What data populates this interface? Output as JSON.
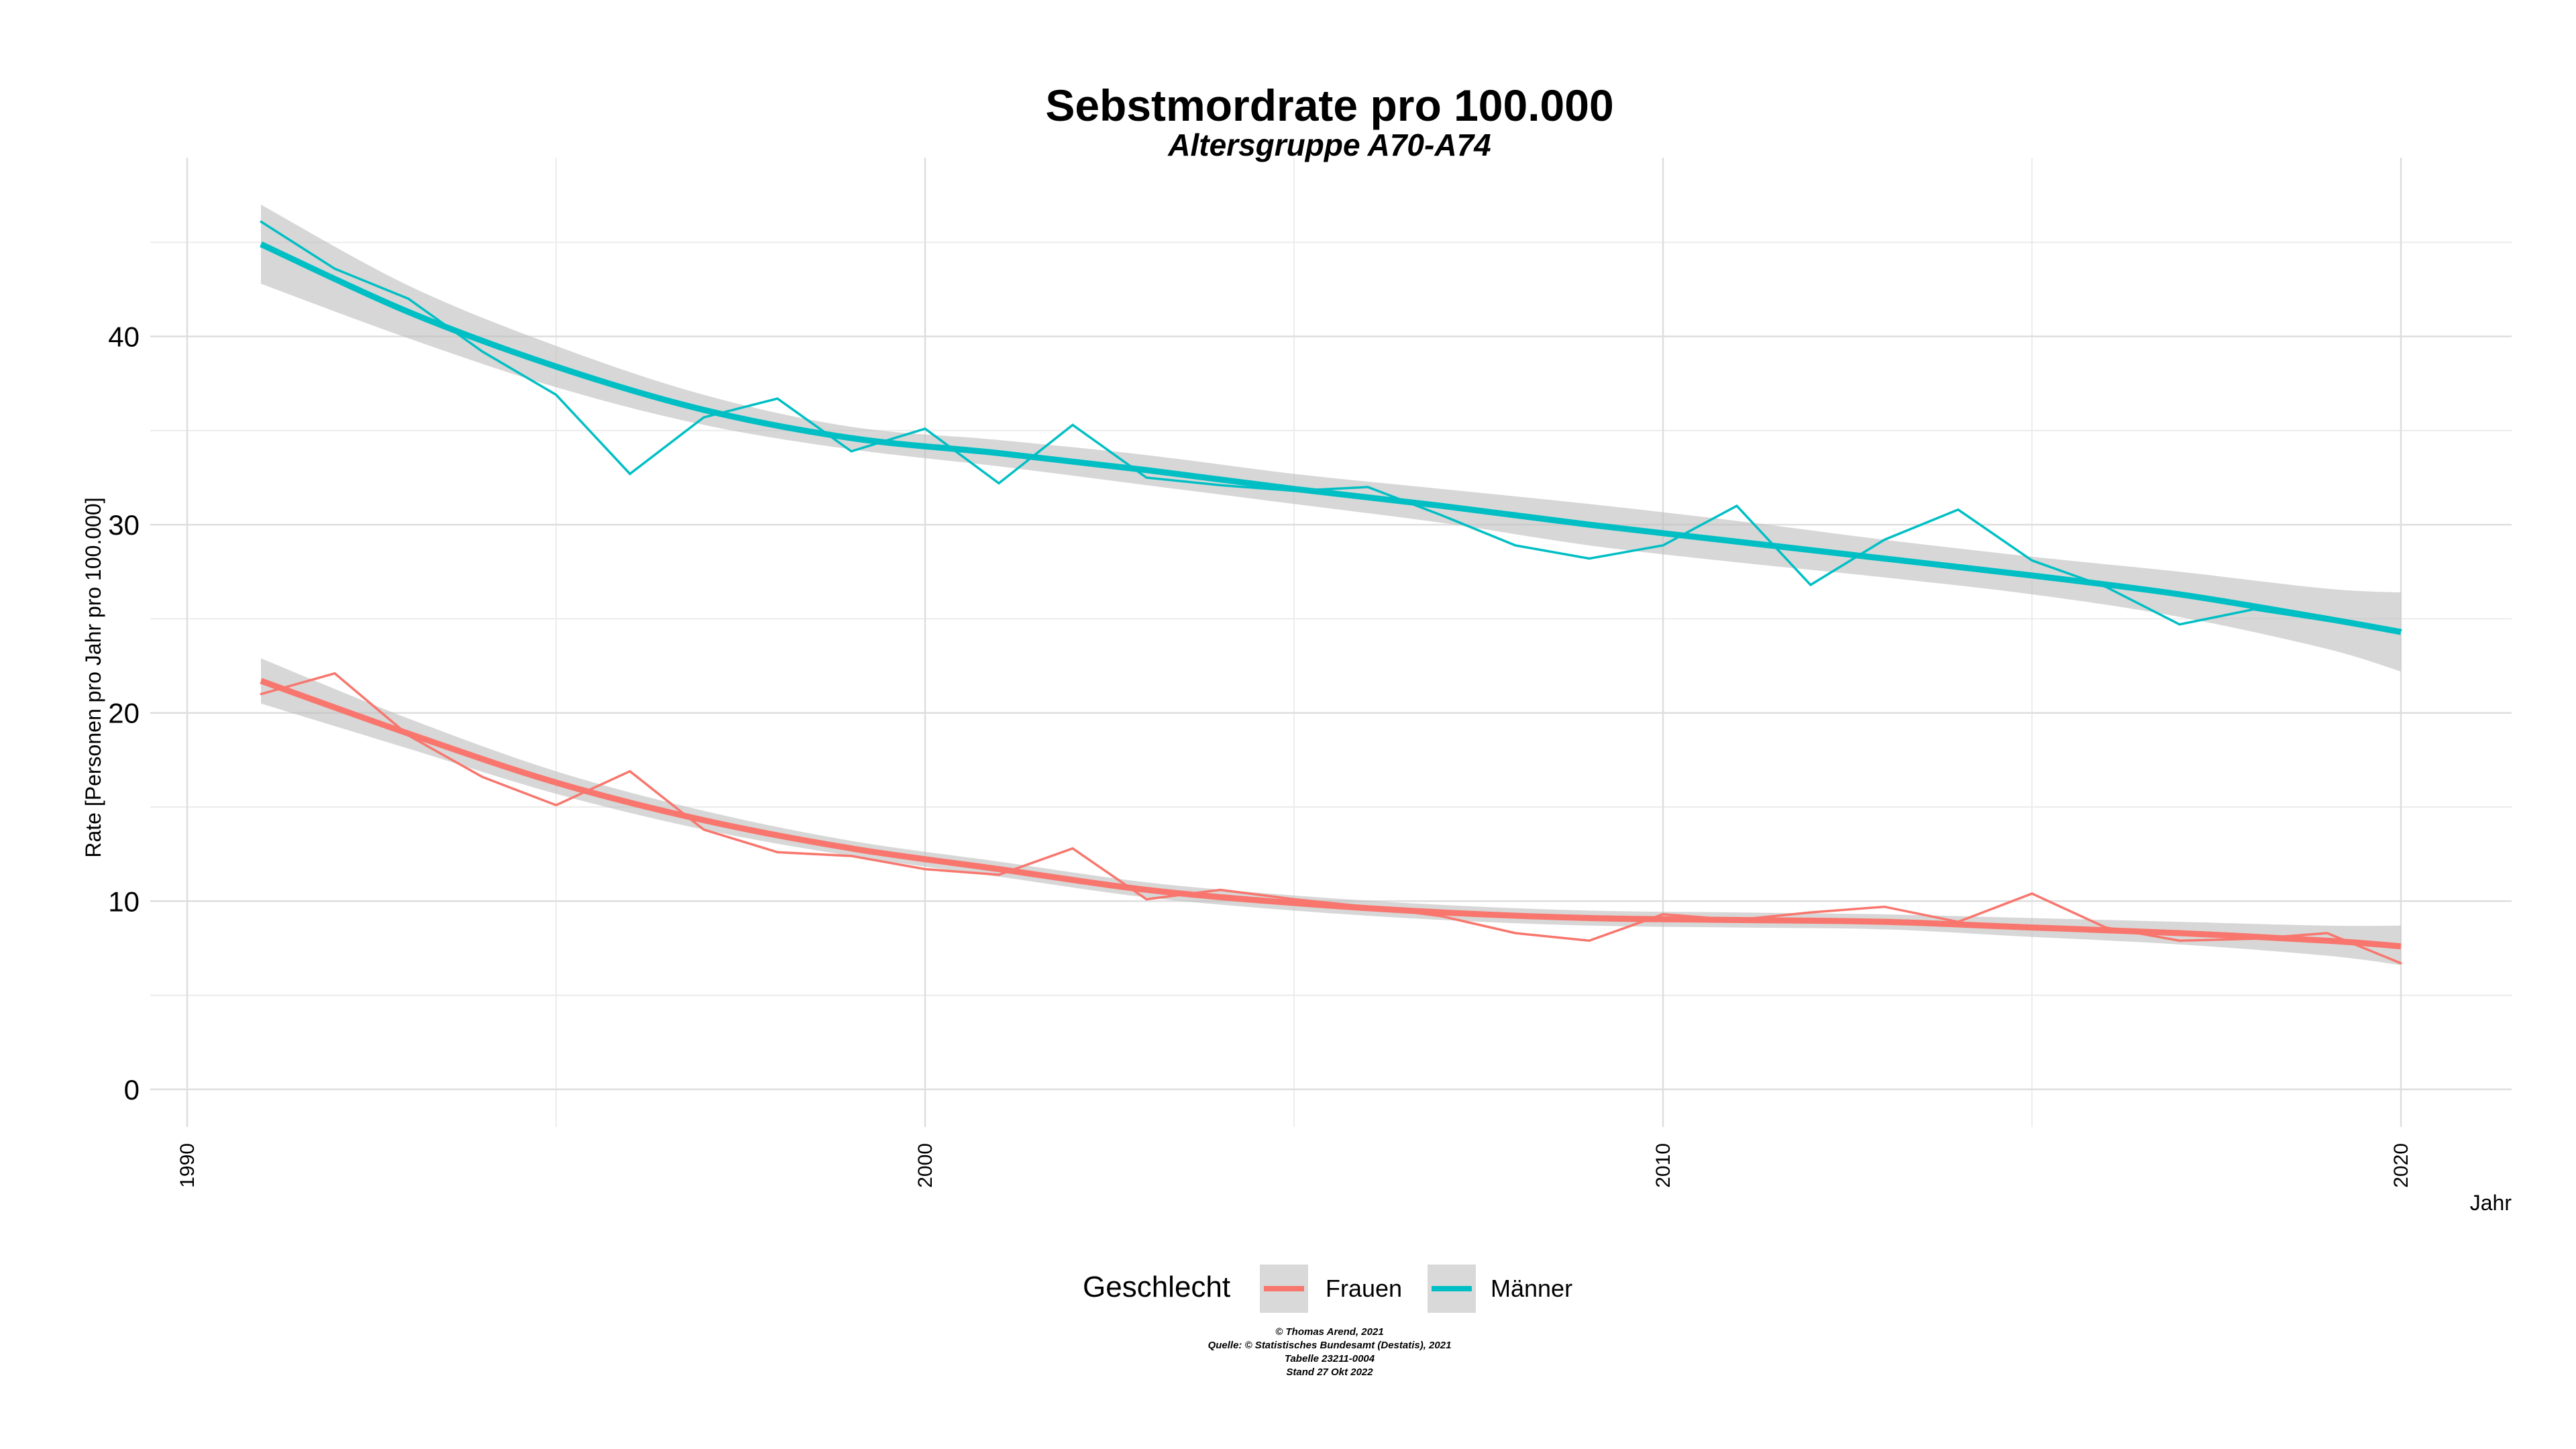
{
  "chart_data": {
    "type": "line",
    "title": "Sebstmordrate pro 100.000",
    "subtitle": "Altersgruppe A70-A74",
    "xlabel": "Jahr",
    "ylabel": "Rate [Personen pro Jahr pro 100.000]",
    "xlim": [
      1989.5,
      2021.5
    ],
    "ylim": [
      -2,
      49.5
    ],
    "x_ticks": [
      1990,
      2000,
      2010,
      2020
    ],
    "y_ticks": [
      0,
      10,
      20,
      30,
      40
    ],
    "grid": true,
    "legend": {
      "title": "Geschlecht",
      "position": "bottom"
    },
    "series": [
      {
        "name": "Frauen",
        "color": "#F8766D",
        "x": [
          1991,
          1992,
          1993,
          1994,
          1995,
          1996,
          1997,
          1998,
          1999,
          2000,
          2001,
          2002,
          2003,
          2004,
          2005,
          2006,
          2007,
          2008,
          2009,
          2010,
          2011,
          2012,
          2013,
          2014,
          2015,
          2016,
          2017,
          2018,
          2019,
          2020
        ],
        "values": [
          21.0,
          22.1,
          18.8,
          16.6,
          15.1,
          16.9,
          13.8,
          12.6,
          12.4,
          11.7,
          11.4,
          12.8,
          10.1,
          10.6,
          10.1,
          9.7,
          9.2,
          8.3,
          7.9,
          9.3,
          9.0,
          9.4,
          9.7,
          8.9,
          10.4,
          8.6,
          7.9,
          8.0,
          8.3,
          6.7
        ],
        "smooth": {
          "x": [
            1991,
            1993,
            1995,
            1997,
            1999,
            2001,
            2003,
            2005,
            2007,
            2009,
            2011,
            2013,
            2015,
            2017,
            2019,
            2020
          ],
          "y": [
            21.7,
            18.9,
            16.3,
            14.3,
            12.8,
            11.7,
            10.6,
            9.9,
            9.4,
            9.1,
            9.0,
            8.9,
            8.6,
            8.3,
            7.9,
            7.6
          ],
          "upper": [
            22.9,
            19.7,
            16.9,
            14.8,
            13.2,
            12.1,
            11.0,
            10.3,
            9.8,
            9.5,
            9.4,
            9.3,
            9.1,
            8.9,
            8.7,
            8.7
          ],
          "lower": [
            20.5,
            18.1,
            15.7,
            13.8,
            12.4,
            11.3,
            10.2,
            9.5,
            9.0,
            8.7,
            8.6,
            8.5,
            8.1,
            7.7,
            7.1,
            6.6
          ]
        }
      },
      {
        "name": "Männer",
        "color": "#00BFC4",
        "x": [
          1991,
          1992,
          1993,
          1994,
          1995,
          1996,
          1997,
          1998,
          1999,
          2000,
          2001,
          2002,
          2003,
          2004,
          2005,
          2006,
          2007,
          2008,
          2009,
          2010,
          2011,
          2012,
          2013,
          2014,
          2015,
          2016,
          2017,
          2018,
          2019,
          2020
        ],
        "values": [
          46.1,
          43.6,
          42.0,
          39.2,
          36.9,
          32.7,
          35.7,
          36.7,
          33.9,
          35.1,
          32.2,
          35.3,
          32.5,
          32.1,
          31.8,
          32.0,
          30.5,
          28.9,
          28.2,
          28.9,
          31.0,
          26.8,
          29.2,
          30.8,
          28.1,
          26.7,
          24.7,
          25.5,
          24.9,
          24.4
        ],
        "smooth": {
          "x": [
            1991,
            1993,
            1995,
            1997,
            1999,
            2001,
            2003,
            2005,
            2007,
            2009,
            2011,
            2013,
            2015,
            2017,
            2019,
            2020
          ],
          "y": [
            44.9,
            41.3,
            38.4,
            36.1,
            34.6,
            33.8,
            32.9,
            31.9,
            31.0,
            30.0,
            29.1,
            28.2,
            27.3,
            26.3,
            25.0,
            24.3
          ],
          "upper": [
            47.0,
            42.7,
            39.5,
            36.9,
            35.2,
            34.5,
            33.7,
            32.7,
            31.9,
            31.1,
            30.2,
            29.2,
            28.3,
            27.5,
            26.6,
            26.4
          ],
          "lower": [
            42.8,
            39.9,
            37.3,
            35.3,
            34.0,
            33.1,
            32.1,
            31.1,
            30.1,
            28.9,
            28.0,
            27.2,
            26.3,
            25.1,
            23.4,
            22.2
          ]
        }
      }
    ],
    "caption": [
      "© Thomas Arend, 2021",
      "Quelle: © Statistisches Bundesamt (Destatis), 2021",
      "Tabelle 23211-0004",
      "Stand 27 Okt 2022"
    ]
  }
}
